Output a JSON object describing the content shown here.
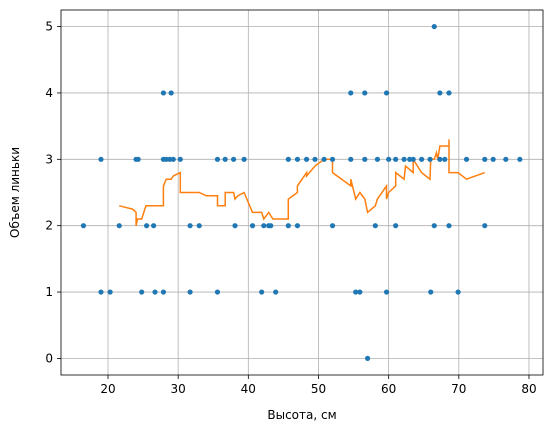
{
  "chart_data": {
    "type": "scatter",
    "xlabel": "Высота, см",
    "ylabel": "Объем линьки",
    "xlim": [
      13.3,
      82.0
    ],
    "ylim": [
      -0.25,
      5.25
    ],
    "xticks": [
      20,
      30,
      40,
      50,
      60,
      70,
      80
    ],
    "yticks": [
      0,
      1,
      2,
      3,
      4,
      5
    ],
    "grid": true,
    "colors": {
      "points": "#1f77b4",
      "trend": "#ff7f0e"
    },
    "series": [
      {
        "kind": "points",
        "points": [
          [
            16.5,
            2
          ],
          [
            19.0,
            3
          ],
          [
            19.0,
            1
          ],
          [
            20.3,
            1
          ],
          [
            21.6,
            2
          ],
          [
            24.0,
            3
          ],
          [
            24.3,
            3
          ],
          [
            24.8,
            1
          ],
          [
            25.5,
            2
          ],
          [
            26.5,
            2
          ],
          [
            26.7,
            1
          ],
          [
            27.9,
            4
          ],
          [
            27.9,
            1
          ],
          [
            27.9,
            3
          ],
          [
            28.3,
            3
          ],
          [
            28.8,
            3
          ],
          [
            29.0,
            4
          ],
          [
            29.3,
            3
          ],
          [
            30.3,
            3
          ],
          [
            31.7,
            2
          ],
          [
            31.7,
            1
          ],
          [
            33.0,
            2
          ],
          [
            35.6,
            3
          ],
          [
            35.6,
            1
          ],
          [
            36.7,
            3
          ],
          [
            37.9,
            3
          ],
          [
            38.1,
            2
          ],
          [
            39.4,
            3
          ],
          [
            40.6,
            2
          ],
          [
            41.9,
            1
          ],
          [
            42.2,
            2
          ],
          [
            42.9,
            2
          ],
          [
            43.2,
            2
          ],
          [
            43.9,
            1
          ],
          [
            45.7,
            3
          ],
          [
            45.7,
            2
          ],
          [
            47.0,
            3
          ],
          [
            47.0,
            2
          ],
          [
            48.3,
            3
          ],
          [
            49.5,
            3
          ],
          [
            50.8,
            3
          ],
          [
            52.0,
            3
          ],
          [
            52.0,
            2
          ],
          [
            54.6,
            4
          ],
          [
            54.6,
            3
          ],
          [
            55.3,
            1
          ],
          [
            55.9,
            1
          ],
          [
            56.6,
            4
          ],
          [
            56.6,
            3
          ],
          [
            57.0,
            0
          ],
          [
            58.1,
            2
          ],
          [
            58.4,
            3
          ],
          [
            59.7,
            4
          ],
          [
            59.7,
            1
          ],
          [
            60.0,
            3
          ],
          [
            61.0,
            2
          ],
          [
            61.0,
            3
          ],
          [
            62.2,
            3
          ],
          [
            63.0,
            3
          ],
          [
            63.5,
            3
          ],
          [
            64.7,
            3
          ],
          [
            65.9,
            3
          ],
          [
            66.0,
            1
          ],
          [
            66.5,
            5
          ],
          [
            66.5,
            2
          ],
          [
            67.3,
            4
          ],
          [
            67.3,
            3
          ],
          [
            68.0,
            3
          ],
          [
            68.6,
            4
          ],
          [
            68.6,
            2
          ],
          [
            69.9,
            1
          ],
          [
            71.1,
            3
          ],
          [
            73.7,
            3
          ],
          [
            73.7,
            2
          ],
          [
            74.9,
            3
          ],
          [
            76.7,
            3
          ],
          [
            78.7,
            3
          ]
        ]
      },
      {
        "kind": "line",
        "points": [
          [
            21.6,
            2.3
          ],
          [
            23.5,
            2.25
          ],
          [
            24.0,
            2.2
          ],
          [
            24.0,
            2.0
          ],
          [
            24.2,
            2.1
          ],
          [
            24.8,
            2.1
          ],
          [
            25.4,
            2.3
          ],
          [
            27.9,
            2.3
          ],
          [
            27.9,
            2.6
          ],
          [
            28.3,
            2.7
          ],
          [
            29.0,
            2.7
          ],
          [
            29.3,
            2.75
          ],
          [
            30.3,
            2.8
          ],
          [
            30.3,
            2.5
          ],
          [
            33.0,
            2.5
          ],
          [
            34.0,
            2.45
          ],
          [
            35.6,
            2.45
          ],
          [
            35.6,
            2.3
          ],
          [
            36.7,
            2.3
          ],
          [
            36.7,
            2.5
          ],
          [
            37.9,
            2.5
          ],
          [
            38.1,
            2.4
          ],
          [
            38.5,
            2.45
          ],
          [
            39.4,
            2.5
          ],
          [
            40.6,
            2.2
          ],
          [
            41.9,
            2.2
          ],
          [
            42.2,
            2.1
          ],
          [
            42.9,
            2.2
          ],
          [
            43.5,
            2.1
          ],
          [
            45.7,
            2.1
          ],
          [
            45.7,
            2.4
          ],
          [
            47.0,
            2.5
          ],
          [
            47.0,
            2.6
          ],
          [
            48.3,
            2.8
          ],
          [
            48.3,
            2.75
          ],
          [
            49.5,
            2.9
          ],
          [
            50.8,
            3.0
          ],
          [
            52.0,
            3.0
          ],
          [
            52.0,
            2.8
          ],
          [
            54.6,
            2.6
          ],
          [
            54.6,
            2.7
          ],
          [
            55.3,
            2.4
          ],
          [
            55.9,
            2.5
          ],
          [
            56.6,
            2.4
          ],
          [
            57.0,
            2.2
          ],
          [
            58.1,
            2.3
          ],
          [
            58.4,
            2.4
          ],
          [
            59.7,
            2.6
          ],
          [
            59.7,
            2.4
          ],
          [
            60.0,
            2.5
          ],
          [
            61.0,
            2.6
          ],
          [
            61.0,
            2.8
          ],
          [
            62.2,
            2.7
          ],
          [
            62.4,
            2.9
          ],
          [
            63.5,
            2.8
          ],
          [
            63.5,
            3.0
          ],
          [
            64.7,
            2.8
          ],
          [
            65.9,
            2.7
          ],
          [
            66.0,
            3.0
          ],
          [
            66.5,
            3.0
          ],
          [
            66.8,
            3.1
          ],
          [
            67.0,
            3.0
          ],
          [
            67.3,
            3.2
          ],
          [
            68.6,
            3.2
          ],
          [
            68.6,
            3.3
          ],
          [
            68.6,
            2.8
          ],
          [
            69.9,
            2.8
          ],
          [
            71.1,
            2.7
          ],
          [
            73.7,
            2.8
          ]
        ]
      }
    ]
  }
}
